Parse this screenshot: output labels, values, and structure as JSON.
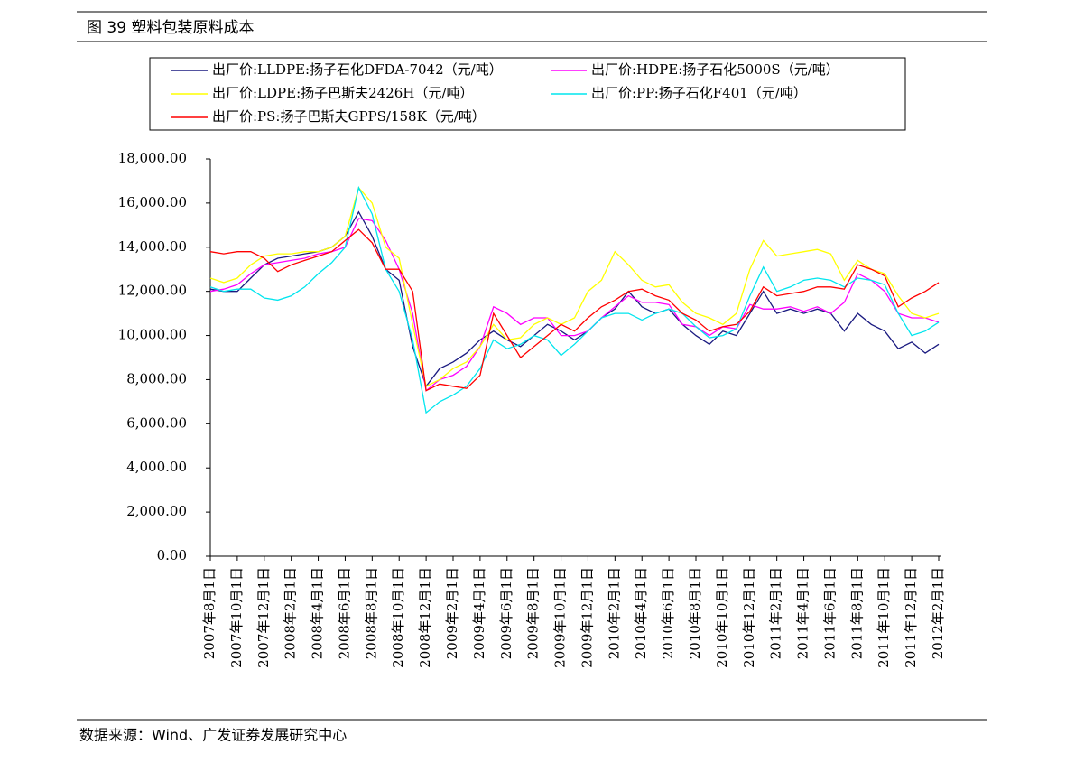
{
  "chart_data": {
    "type": "line",
    "title": "图 39 塑料包装原料成本",
    "source": "数据来源：Wind、广发证券发展研究中心",
    "categories": [
      "2007年8月1日",
      null,
      "2007年10月1日",
      null,
      "2007年12月1日",
      null,
      "2008年2月1日",
      null,
      "2008年4月1日",
      null,
      "2008年6月1日",
      null,
      "2008年8月1日",
      null,
      "2008年10月1日",
      null,
      "2008年12月1日",
      null,
      "2009年2月1日",
      null,
      "2009年4月1日",
      null,
      "2009年6月1日",
      null,
      "2009年8月1日",
      null,
      "2009年10月1日",
      null,
      "2009年12月1日",
      null,
      "2010年2月1日",
      null,
      "2010年4月1日",
      null,
      "2010年6月1日",
      null,
      "2010年8月1日",
      null,
      "2010年10月1日",
      null,
      "2010年12月1日",
      null,
      "2011年2月1日",
      null,
      "2011年4月1日",
      null,
      "2011年6月1日",
      null,
      "2011年8月1日",
      null,
      "2011年10月1日",
      null,
      "2011年12月1日",
      null,
      "2012年2月1日"
    ],
    "ylim": [
      0,
      18000
    ],
    "yticks": [
      {
        "value": 0,
        "label": "0.00"
      },
      {
        "value": 2000,
        "label": "2,000.00"
      },
      {
        "value": 4000,
        "label": "4,000.00"
      },
      {
        "value": 6000,
        "label": "6,000.00"
      },
      {
        "value": 8000,
        "label": "8,000.00"
      },
      {
        "value": 10000,
        "label": "10,000.00"
      },
      {
        "value": 12000,
        "label": "12,000.00"
      },
      {
        "value": 14000,
        "label": "14,000.00"
      },
      {
        "value": 16000,
        "label": "16,000.00"
      },
      {
        "value": 18000,
        "label": "18,000.00"
      }
    ],
    "series": [
      {
        "name": "出厂价:LLDPE:扬子石化DFDA-7042（元/吨）",
        "color": "#1a1a80",
        "values": [
          12100,
          12000,
          12000,
          12600,
          13200,
          13500,
          13600,
          13700,
          13800,
          14000,
          14500,
          15600,
          14500,
          13000,
          12500,
          9500,
          7700,
          8500,
          8800,
          9200,
          9800,
          10200,
          9800,
          9500,
          10000,
          10500,
          10200,
          9800,
          10200,
          10800,
          11200,
          12000,
          11300,
          11000,
          11200,
          10500,
          10000,
          9600,
          10200,
          10000,
          11000,
          12000,
          11000,
          11200,
          11000,
          11200,
          11000,
          10200,
          11000,
          10500,
          10200,
          9400,
          9700,
          9200,
          9600
        ]
      },
      {
        "name": "出厂价:HDPE:扬子石化5000S（元/吨）",
        "color": "#ff00ff",
        "values": [
          12000,
          12100,
          12300,
          12800,
          13200,
          13300,
          13400,
          13500,
          13700,
          13800,
          14000,
          15300,
          15200,
          14300,
          13000,
          11000,
          7500,
          8000,
          8200,
          8600,
          9500,
          11300,
          11000,
          10500,
          10800,
          10800,
          10000,
          10000,
          10200,
          10800,
          11300,
          11800,
          11500,
          11500,
          11400,
          10500,
          10400,
          10000,
          10400,
          10300,
          11400,
          11200,
          11200,
          11300,
          11100,
          11300,
          11000,
          11500,
          12800,
          12500,
          12000,
          11000,
          10800,
          10800,
          10600
        ]
      },
      {
        "name": "出厂价:LDPE:扬子巴斯夫2426H（元/吨）",
        "color": "#ffff00",
        "values": [
          12600,
          12400,
          12600,
          13200,
          13600,
          13700,
          13700,
          13800,
          13800,
          14000,
          14500,
          16700,
          16000,
          14000,
          13500,
          10500,
          7700,
          8000,
          8500,
          8800,
          9500,
          10500,
          9800,
          9900,
          10500,
          10800,
          10500,
          10800,
          12000,
          12500,
          13800,
          13200,
          12500,
          12200,
          12300,
          11500,
          11000,
          10800,
          10500,
          11000,
          13000,
          14300,
          13600,
          13700,
          13800,
          13900,
          13700,
          12500,
          13400,
          13000,
          12800,
          11800,
          11000,
          10800,
          11000
        ]
      },
      {
        "name": "出厂价:PP:扬子石化F401（元/吨）",
        "color": "#00e5ee",
        "values": [
          12200,
          12000,
          12100,
          12100,
          11700,
          11600,
          11800,
          12200,
          12800,
          13300,
          14000,
          16700,
          15500,
          13000,
          12000,
          9800,
          6500,
          7000,
          7300,
          7700,
          8500,
          9800,
          9400,
          9600,
          10000,
          9800,
          9100,
          9600,
          10200,
          10800,
          11000,
          11000,
          10700,
          11000,
          11200,
          11000,
          10400,
          9900,
          10000,
          10300,
          11800,
          13100,
          12000,
          12200,
          12500,
          12600,
          12500,
          12200,
          12600,
          12500,
          12300,
          11000,
          10000,
          10200,
          10600
        ]
      },
      {
        "name": "出厂价:PS:扬子巴斯夫GPPS/158K（元/吨）",
        "color": "#ff0000",
        "values": [
          13800,
          13700,
          13800,
          13800,
          13500,
          12900,
          13200,
          13400,
          13600,
          13800,
          14300,
          14800,
          14200,
          13000,
          13000,
          12000,
          7500,
          7800,
          7700,
          7600,
          8200,
          11000,
          10000,
          9000,
          9500,
          10000,
          10500,
          10200,
          10800,
          11300,
          11600,
          12000,
          12100,
          11800,
          11600,
          11000,
          10700,
          10200,
          10400,
          10500,
          11100,
          12200,
          11800,
          11900,
          12000,
          12200,
          12200,
          12100,
          13200,
          13000,
          12700,
          11300,
          11700,
          12000,
          12400
        ]
      }
    ]
  }
}
